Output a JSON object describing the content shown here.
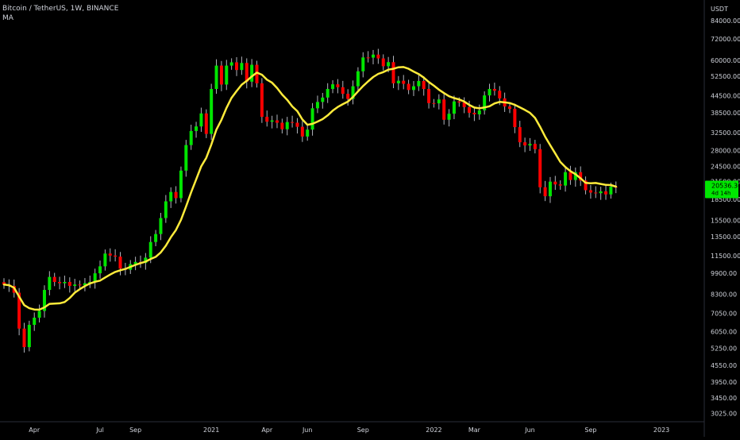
{
  "header": {
    "symbol_line": "Bitcoin / TetherUS, 1W, BINANCE",
    "indicator": "MA"
  },
  "price_tag": {
    "price": "20536.36",
    "countdown": "4d 14h",
    "color": "#00e600"
  },
  "colors": {
    "up": "#00e600",
    "down": "#ff0000",
    "ma": "#ffeb3b",
    "background": "#000000"
  },
  "chart_data": {
    "type": "candlestick",
    "y_scale": "log",
    "y_axis_title": "USDT",
    "ylim": [
      2800,
      100000
    ],
    "y_ticks": [
      84000,
      72000,
      60000,
      52500,
      44500,
      38500,
      32500,
      28000,
      24500,
      21500,
      18500,
      15500,
      13500,
      11500,
      9900,
      8300,
      7050,
      6050,
      5250,
      4550,
      3950,
      3450,
      3025
    ],
    "y_tick_labels": [
      "84000.00",
      "72000.00",
      "60000.00",
      "52500.00",
      "44500.00",
      "38500.00",
      "32500.00",
      "28000.00",
      "24500.00",
      "21500.00",
      "18500.00",
      "15500.00",
      "13500.00",
      "11500.00",
      "9900.00",
      "8300.00",
      "7050.00",
      "6050.00",
      "5250.00",
      "4550.00",
      "3950.00",
      "3450.00",
      "3025.00"
    ],
    "x_labels": [
      {
        "week": 6,
        "label": "Apr"
      },
      {
        "week": 19,
        "label": "Jul"
      },
      {
        "week": 26,
        "label": "Sep"
      },
      {
        "week": 41,
        "label": "2021"
      },
      {
        "week": 52,
        "label": "Apr"
      },
      {
        "week": 60,
        "label": "Jun"
      },
      {
        "week": 71,
        "label": "Sep"
      },
      {
        "week": 85,
        "label": "2022"
      },
      {
        "week": 93,
        "label": "Mar"
      },
      {
        "week": 104,
        "label": "Jun"
      },
      {
        "week": 116,
        "label": "Sep"
      },
      {
        "week": 130,
        "label": "2023"
      }
    ],
    "closes": [
      9000,
      8900,
      8400,
      6200,
      5300,
      6400,
      6800,
      7200,
      8600,
      9600,
      9200,
      9100,
      9200,
      8900,
      9000,
      8950,
      9100,
      9200,
      9900,
      10500,
      11700,
      11500,
      11400,
      10300,
      10200,
      10700,
      10900,
      10800,
      11300,
      12900,
      13800,
      15800,
      18200,
      19700,
      18700,
      23600,
      29300,
      33000,
      34300,
      38300,
      32200,
      47100,
      57400,
      48900,
      57400,
      59000,
      55300,
      58700,
      50100,
      57800,
      49400,
      37200,
      35700,
      36100,
      35400,
      33500,
      35600,
      35400,
      34200,
      31500,
      33400,
      40000,
      42200,
      43800,
      47100,
      49000,
      47800,
      45200,
      43300,
      48200,
      54700,
      61500,
      61400,
      63000,
      61000,
      57100,
      59100,
      49400,
      50500,
      49200,
      46700,
      48200,
      50400,
      47100,
      41800,
      41700,
      43100,
      36300,
      38200,
      42400,
      42000,
      40400,
      38500,
      38000,
      39300,
      44600,
      47100,
      46400,
      43500,
      40600,
      39800,
      34100,
      30000,
      29200,
      29600,
      28300,
      20500,
      19000,
      21500,
      21000,
      20800,
      23300,
      21800,
      23300,
      21700,
      20000,
      19600,
      19500,
      19800,
      19300,
      20600,
      20536
    ]
  }
}
